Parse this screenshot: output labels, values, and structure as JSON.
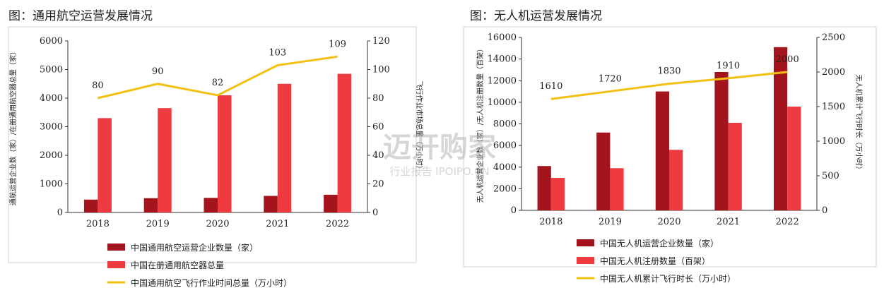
{
  "watermark": {
    "main": "迈开购家",
    "sub": "行业报告 IPOIPO.CN"
  },
  "chart_data": [
    {
      "type": "bar",
      "title": "图：通用航空运营发展情况",
      "categories": [
        "2018",
        "2019",
        "2020",
        "2021",
        "2022"
      ],
      "ylabel": "通航运营企业数（家）/在册通用航空器总量（家）",
      "y2label": "飞行作业市场总量（万小时）",
      "ylim": [
        0,
        6000
      ],
      "yticks": [
        "0",
        "1000",
        "2000",
        "3000",
        "4000",
        "5000",
        "6000"
      ],
      "y2lim": [
        0,
        120
      ],
      "y2ticks": [
        "0",
        "20",
        "40",
        "60",
        "80",
        "100",
        "120"
      ],
      "series": [
        {
          "name": "中国通用航空运营企业数量（家）",
          "axis": "left",
          "kind": "bar",
          "color": "#a3141c",
          "values": [
            450,
            500,
            510,
            580,
            620
          ]
        },
        {
          "name": "中国在册通用航空器总量",
          "axis": "left",
          "kind": "bar",
          "color": "#ef3a40",
          "values": [
            3300,
            3650,
            4100,
            4500,
            4850
          ]
        },
        {
          "name": "中国通用航空飞行作业时间总量（万小时）",
          "axis": "right",
          "kind": "line",
          "color": "#f2c010",
          "values": [
            80,
            90,
            82,
            103,
            109
          ],
          "labels": [
            "80",
            "90",
            "82",
            "103",
            "109"
          ]
        }
      ]
    },
    {
      "type": "bar",
      "title": "图：无人机运营发展情况",
      "categories": [
        "2018",
        "2019",
        "2020",
        "2021",
        "2022"
      ],
      "ylabel": "无人机运营企业数（家）/无人机注册数量（百架）",
      "y2label": "无人机累计飞行时长（万小时）",
      "ylim": [
        0,
        16000
      ],
      "yticks": [
        "0",
        "2000",
        "4000",
        "6000",
        "8000",
        "10000",
        "12000",
        "14000",
        "16000"
      ],
      "y2lim": [
        0,
        2500
      ],
      "y2ticks": [
        "0",
        "500",
        "1000",
        "1500",
        "2000",
        "2500"
      ],
      "series": [
        {
          "name": "中国无人机运营企业数量（家）",
          "axis": "left",
          "kind": "bar",
          "color": "#a3141c",
          "values": [
            4100,
            7200,
            11000,
            12800,
            15100
          ]
        },
        {
          "name": "中国无人机注册数量（百架）",
          "axis": "left",
          "kind": "bar",
          "color": "#ef3a40",
          "values": [
            3000,
            3900,
            5600,
            8100,
            9600
          ]
        },
        {
          "name": "中国无人机累计飞行时长（万小时）",
          "axis": "right",
          "kind": "line",
          "color": "#f2c010",
          "values": [
            1610,
            1720,
            1830,
            1910,
            2000
          ],
          "labels": [
            "1610",
            "1720",
            "1830",
            "1910",
            "2000"
          ]
        }
      ]
    }
  ]
}
